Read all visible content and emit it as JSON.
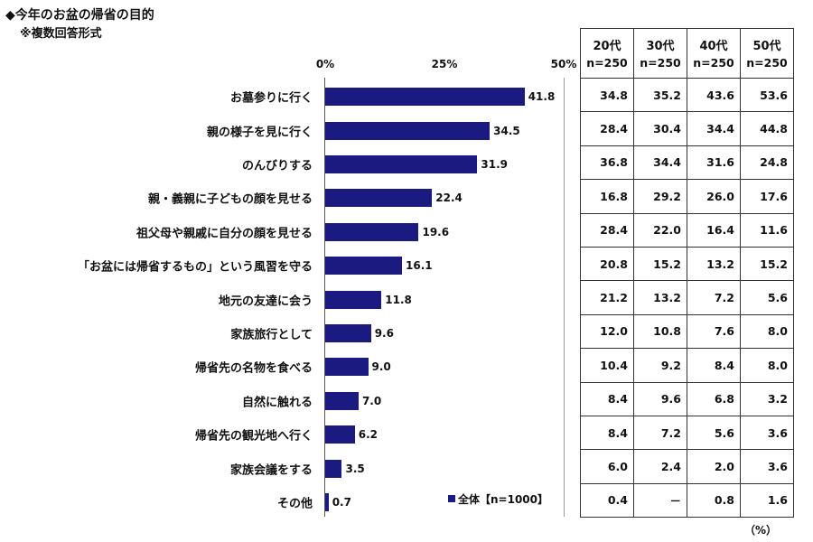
{
  "title": "◆今年のお盆の帰省の目的",
  "subtitle": "※複数回答形式",
  "unit": "（%）",
  "chart_data": {
    "type": "bar",
    "orientation": "horizontal",
    "title": "◆今年のお盆の帰省の目的",
    "subtitle": "※複数回答形式",
    "xlim": [
      0,
      50
    ],
    "ticks": [
      "0%",
      "25%",
      "50%"
    ],
    "tick_values": [
      0,
      25,
      50
    ],
    "legend": "■全体【n=1000】",
    "categories": [
      "お墓参りに行く",
      "親の様子を見に行く",
      "のんびりする",
      "親・義親に子どもの顔を見せる",
      "祖父母や親戚に自分の顔を見せる",
      "「お盆には帰省するもの」という風習を守る",
      "地元の友達に会う",
      "家族旅行として",
      "帰省先の名物を食べる",
      "自然に触れる",
      "帰省先の観光地へ行く",
      "家族会議をする",
      "その他"
    ],
    "series": [
      {
        "name": "全体【n=1000】",
        "values": [
          41.8,
          34.5,
          31.9,
          22.4,
          19.6,
          16.1,
          11.8,
          9.6,
          9.0,
          7.0,
          6.2,
          3.5,
          0.7
        ],
        "labels": [
          "41.8",
          "34.5",
          "31.9",
          "22.4",
          "19.6",
          "16.1",
          "11.8",
          "9.6",
          "9.0",
          "7.0",
          "6.2",
          "3.5",
          "0.7"
        ]
      }
    ],
    "table": {
      "columns": [
        {
          "name": "20代",
          "n": "n=250",
          "values": [
            "34.8",
            "28.4",
            "36.8",
            "16.8",
            "28.4",
            "20.8",
            "21.2",
            "12.0",
            "10.4",
            "8.4",
            "8.4",
            "6.0",
            "0.4"
          ]
        },
        {
          "name": "30代",
          "n": "n=250",
          "values": [
            "35.2",
            "30.4",
            "34.4",
            "29.2",
            "22.0",
            "15.2",
            "13.2",
            "10.8",
            "9.2",
            "9.6",
            "7.2",
            "2.4",
            "－"
          ]
        },
        {
          "name": "40代",
          "n": "n=250",
          "values": [
            "43.6",
            "34.4",
            "31.6",
            "26.0",
            "16.4",
            "13.2",
            "7.2",
            "7.6",
            "8.4",
            "6.8",
            "5.6",
            "2.0",
            "0.8"
          ]
        },
        {
          "name": "50代",
          "n": "n=250",
          "values": [
            "53.6",
            "44.8",
            "24.8",
            "17.6",
            "11.6",
            "15.2",
            "5.6",
            "8.0",
            "8.0",
            "3.2",
            "3.6",
            "3.6",
            "1.6"
          ]
        }
      ]
    },
    "colors": {
      "bar": "#1b1a80"
    }
  }
}
